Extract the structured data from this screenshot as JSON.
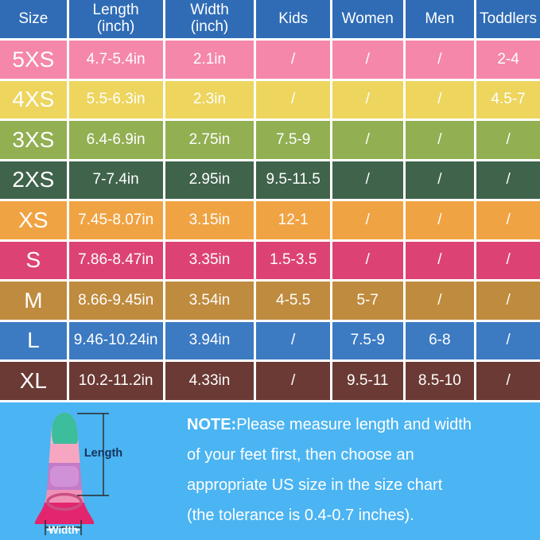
{
  "page": {
    "bottom_background": "#4BB4F2",
    "grid_line_color": "#FFFFFF"
  },
  "table": {
    "header_bg": "#2F6CB5",
    "columns": [
      {
        "id": "size",
        "label": "Size"
      },
      {
        "id": "length",
        "label": "Length\n(inch)"
      },
      {
        "id": "width",
        "label": "Width\n(inch)"
      },
      {
        "id": "kids",
        "label": "Kids"
      },
      {
        "id": "women",
        "label": "Women"
      },
      {
        "id": "men",
        "label": "Men"
      },
      {
        "id": "toddlers",
        "label": "Toddlers"
      }
    ],
    "rows": [
      {
        "size": "5XS",
        "color": "#F587AB",
        "cells": [
          "4.7-5.4in",
          "2.1in",
          "/",
          "/",
          "/",
          "2-4"
        ]
      },
      {
        "size": "4XS",
        "color": "#EDD55E",
        "cells": [
          "5.5-6.3in",
          "2.3in",
          "/",
          "/",
          "/",
          "4.5-7"
        ]
      },
      {
        "size": "3XS",
        "color": "#92AF52",
        "cells": [
          "6.4-6.9in",
          "2.75in",
          "7.5-9",
          "/",
          "/",
          "/"
        ]
      },
      {
        "size": "2XS",
        "color": "#40634C",
        "cells": [
          "7-7.4in",
          "2.95in",
          "9.5-11.5",
          "/",
          "/",
          "/"
        ]
      },
      {
        "size": "XS",
        "color": "#F0A343",
        "cells": [
          "7.45-8.07in",
          "3.15in",
          "12-1",
          "/",
          "/",
          "/"
        ]
      },
      {
        "size": "S",
        "color": "#DC4374",
        "cells": [
          "7.86-8.47in",
          "3.35in",
          "1.5-3.5",
          "/",
          "/",
          "/"
        ]
      },
      {
        "size": "M",
        "color": "#BF8B3E",
        "cells": [
          "8.66-9.45in",
          "3.54in",
          "4-5.5",
          "5-7",
          "/",
          "/"
        ]
      },
      {
        "size": "L",
        "color": "#3C7AC2",
        "cells": [
          "9.46-10.24in",
          "3.94in",
          "/",
          "7.5-9",
          "6-8",
          "/"
        ]
      },
      {
        "size": "XL",
        "color": "#6B3A34",
        "cells": [
          "10.2-11.2in",
          "4.33in",
          "/",
          "9.5-11",
          "8.5-10",
          "/"
        ]
      }
    ]
  },
  "note": {
    "label": "NOTE:",
    "line1": "Please measure length and width",
    "line2": "of your feet first, then choose an",
    "line3": "appropriate US size in the size chart",
    "line4": "(the tolerance is 0.4-0.7 inches)."
  },
  "diagram": {
    "length_label": "Length",
    "width_label": "Width",
    "length_label_color": "#16325B",
    "dimension_line_color": "#2B2B2B",
    "fin_colors": {
      "tip_rim_pink": "#F8B7CD",
      "tip_teal": "#3CBD9B",
      "band_light_pink": "#F7A6C2",
      "band_purple": "#C47BC8",
      "pocket_light_purple": "#D191D6",
      "band_pink": "#EF92B7",
      "blade_magenta": "#E3256E",
      "opening_stroke": "#C94E84"
    }
  }
}
